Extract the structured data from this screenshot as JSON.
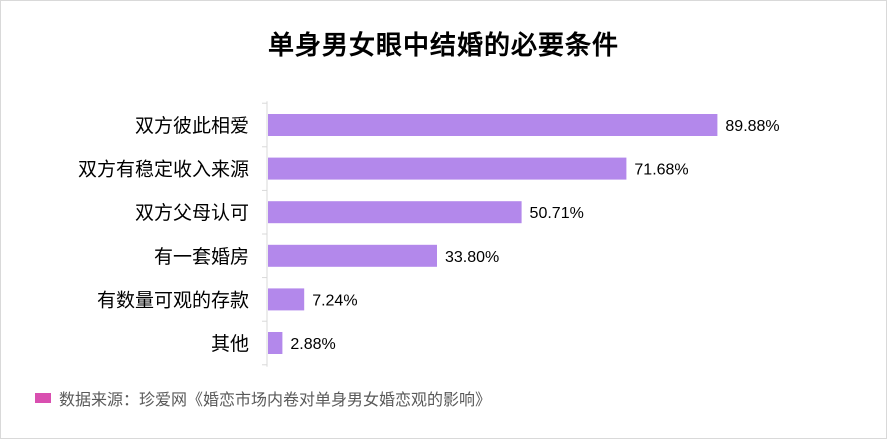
{
  "chart_data": {
    "type": "bar",
    "orientation": "horizontal",
    "title": "单身男女眼中结婚的必要条件",
    "categories": [
      "双方彼此相爱",
      "双方有稳定收入来源",
      "双方父母认可",
      "有一套婚房",
      "有数量可观的存款",
      "其他"
    ],
    "values": [
      89.88,
      71.68,
      50.71,
      33.8,
      7.24,
      2.88
    ],
    "data_labels": [
      "89.88%",
      "71.68%",
      "50.71%",
      "33.80%",
      "7.24%",
      "2.88%"
    ],
    "xlim": [
      0,
      100
    ],
    "grid": false,
    "legend": "none"
  },
  "colors": {
    "bar": "#b388eb",
    "source_swatch": "#d94fb0",
    "text": "#000000"
  },
  "footer": {
    "source_text": "数据来源：珍爱网《婚恋市场内卷对单身男女婚恋观的影响》"
  }
}
